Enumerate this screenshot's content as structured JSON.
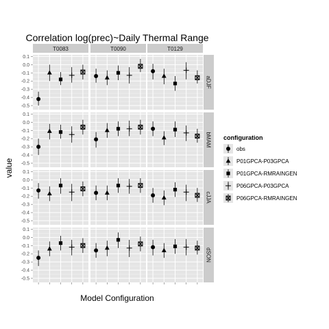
{
  "chart_data": {
    "type": "scatter",
    "title": "Correlation log(prec)~Daily Thermal Range",
    "xlabel": "Model Configuration",
    "ylabel": "value",
    "ylim": [
      -0.55,
      0.12
    ],
    "yticks": [
      "0.1",
      "0.0",
      "-0.1",
      "-0.2",
      "-0.3",
      "-0.4",
      "-0.5"
    ],
    "grid": true,
    "columns": [
      "T0083",
      "T0090",
      "T0129"
    ],
    "rows": [
      "aDJF",
      "bMAM",
      "cJJA",
      "dSON"
    ],
    "legend": {
      "title": "configuration",
      "position": "right",
      "entries": [
        {
          "name": "obs",
          "shape": "circle"
        },
        {
          "name": "P01GPCA-P03GPCA",
          "shape": "triangle"
        },
        {
          "name": "P01GPCA-RMRAINGEN",
          "shape": "square"
        },
        {
          "name": "P06GPCA-P03GPCA",
          "shape": "plus"
        },
        {
          "name": "P06GPCA-RMRAINGEN",
          "shape": "boxcross"
        }
      ]
    },
    "panels": [
      {
        "row": "aDJF",
        "col": "T0083",
        "points": [
          {
            "config": "obs",
            "y": -0.42,
            "lo": -0.5,
            "hi": -0.33
          },
          {
            "config": "P01GPCA-P03GPCA",
            "y": -0.1,
            "lo": -0.2,
            "hi": 0.0
          },
          {
            "config": "P01GPCA-RMRAINGEN",
            "y": -0.18,
            "lo": -0.25,
            "hi": -0.09
          },
          {
            "config": "P06GPCA-P03GPCA",
            "y": -0.13,
            "lo": -0.22,
            "hi": -0.03
          },
          {
            "config": "P06GPCA-RMRAINGEN",
            "y": -0.09,
            "lo": -0.18,
            "hi": 0.0
          }
        ]
      },
      {
        "row": "aDJF",
        "col": "T0090",
        "points": [
          {
            "config": "obs",
            "y": -0.14,
            "lo": -0.22,
            "hi": -0.05
          },
          {
            "config": "P01GPCA-P03GPCA",
            "y": -0.16,
            "lo": -0.25,
            "hi": -0.07
          },
          {
            "config": "P01GPCA-RMRAINGEN",
            "y": -0.1,
            "lo": -0.19,
            "hi": -0.01
          },
          {
            "config": "P06GPCA-P03GPCA",
            "y": -0.13,
            "lo": -0.23,
            "hi": -0.03
          },
          {
            "config": "P06GPCA-RMRAINGEN",
            "y": -0.02,
            "lo": -0.09,
            "hi": 0.07
          }
        ]
      },
      {
        "row": "aDJF",
        "col": "T0129",
        "points": [
          {
            "config": "obs",
            "y": -0.08,
            "lo": -0.18,
            "hi": 0.01
          },
          {
            "config": "P01GPCA-P03GPCA",
            "y": -0.14,
            "lo": -0.24,
            "hi": -0.05
          },
          {
            "config": "P01GPCA-RMRAINGEN",
            "y": -0.23,
            "lo": -0.32,
            "hi": -0.14
          },
          {
            "config": "P06GPCA-P03GPCA",
            "y": -0.07,
            "lo": -0.18,
            "hi": 0.03
          },
          {
            "config": "P06GPCA-RMRAINGEN",
            "y": -0.16,
            "lo": -0.23,
            "hi": -0.07
          }
        ]
      },
      {
        "row": "bMAM",
        "col": "T0083",
        "points": [
          {
            "config": "obs",
            "y": -0.3,
            "lo": -0.4,
            "hi": -0.2
          },
          {
            "config": "P01GPCA-P03GPCA",
            "y": -0.11,
            "lo": -0.21,
            "hi": -0.02
          },
          {
            "config": "P01GPCA-RMRAINGEN",
            "y": -0.12,
            "lo": -0.2,
            "hi": -0.03
          },
          {
            "config": "P06GPCA-P03GPCA",
            "y": -0.15,
            "lo": -0.25,
            "hi": -0.05
          },
          {
            "config": "P06GPCA-RMRAINGEN",
            "y": -0.06,
            "lo": -0.15,
            "hi": 0.03
          }
        ]
      },
      {
        "row": "bMAM",
        "col": "T0090",
        "points": [
          {
            "config": "obs",
            "y": -0.21,
            "lo": -0.31,
            "hi": -0.12
          },
          {
            "config": "P01GPCA-P03GPCA",
            "y": -0.1,
            "lo": -0.19,
            "hi": -0.01
          },
          {
            "config": "P01GPCA-RMRAINGEN",
            "y": -0.08,
            "lo": -0.17,
            "hi": 0.01
          },
          {
            "config": "P06GPCA-P03GPCA",
            "y": -0.08,
            "lo": -0.17,
            "hi": 0.02
          },
          {
            "config": "P06GPCA-RMRAINGEN",
            "y": -0.06,
            "lo": -0.15,
            "hi": 0.03
          }
        ]
      },
      {
        "row": "bMAM",
        "col": "T0129",
        "points": [
          {
            "config": "obs",
            "y": -0.08,
            "lo": -0.17,
            "hi": 0.01
          },
          {
            "config": "P01GPCA-P03GPCA",
            "y": -0.19,
            "lo": -0.28,
            "hi": -0.11
          },
          {
            "config": "P01GPCA-RMRAINGEN",
            "y": -0.09,
            "lo": -0.18,
            "hi": 0.01
          },
          {
            "config": "P06GPCA-P03GPCA",
            "y": -0.13,
            "lo": -0.23,
            "hi": -0.04
          },
          {
            "config": "P06GPCA-RMRAINGEN",
            "y": -0.17,
            "lo": -0.25,
            "hi": -0.08
          }
        ]
      },
      {
        "row": "cJJA",
        "col": "T0083",
        "points": [
          {
            "config": "obs",
            "y": -0.13,
            "lo": -0.23,
            "hi": -0.04
          },
          {
            "config": "P01GPCA-P03GPCA",
            "y": -0.17,
            "lo": -0.26,
            "hi": -0.08
          },
          {
            "config": "P01GPCA-RMRAINGEN",
            "y": -0.07,
            "lo": -0.17,
            "hi": 0.02
          },
          {
            "config": "P06GPCA-P03GPCA",
            "y": -0.15,
            "lo": -0.26,
            "hi": -0.05
          },
          {
            "config": "P06GPCA-RMRAINGEN",
            "y": -0.11,
            "lo": -0.2,
            "hi": -0.02
          }
        ]
      },
      {
        "row": "cJJA",
        "col": "T0090",
        "points": [
          {
            "config": "obs",
            "y": -0.16,
            "lo": -0.25,
            "hi": -0.07
          },
          {
            "config": "P01GPCA-P03GPCA",
            "y": -0.16,
            "lo": -0.25,
            "hi": -0.07
          },
          {
            "config": "P01GPCA-RMRAINGEN",
            "y": -0.07,
            "lo": -0.16,
            "hi": 0.02
          },
          {
            "config": "P06GPCA-P03GPCA",
            "y": -0.08,
            "lo": -0.17,
            "hi": 0.01
          },
          {
            "config": "P06GPCA-RMRAINGEN",
            "y": -0.07,
            "lo": -0.16,
            "hi": 0.02
          }
        ]
      },
      {
        "row": "cJJA",
        "col": "T0129",
        "points": [
          {
            "config": "obs",
            "y": -0.19,
            "lo": -0.28,
            "hi": -0.1
          },
          {
            "config": "P01GPCA-P03GPCA",
            "y": -0.22,
            "lo": -0.31,
            "hi": -0.13
          },
          {
            "config": "P01GPCA-RMRAINGEN",
            "y": -0.12,
            "lo": -0.21,
            "hi": -0.03
          },
          {
            "config": "P06GPCA-P03GPCA",
            "y": -0.15,
            "lo": -0.26,
            "hi": -0.06
          },
          {
            "config": "P06GPCA-RMRAINGEN",
            "y": -0.19,
            "lo": -0.27,
            "hi": -0.1
          }
        ]
      },
      {
        "row": "dSON",
        "col": "T0083",
        "points": [
          {
            "config": "obs",
            "y": -0.25,
            "lo": -0.35,
            "hi": -0.16
          },
          {
            "config": "P01GPCA-P03GPCA",
            "y": -0.14,
            "lo": -0.23,
            "hi": -0.05
          },
          {
            "config": "P01GPCA-RMRAINGEN",
            "y": -0.07,
            "lo": -0.16,
            "hi": 0.02
          },
          {
            "config": "P06GPCA-P03GPCA",
            "y": -0.12,
            "lo": -0.22,
            "hi": -0.03
          },
          {
            "config": "P06GPCA-RMRAINGEN",
            "y": -0.1,
            "lo": -0.19,
            "hi": -0.01
          }
        ]
      },
      {
        "row": "dSON",
        "col": "T0090",
        "points": [
          {
            "config": "obs",
            "y": -0.16,
            "lo": -0.25,
            "hi": -0.07
          },
          {
            "config": "P01GPCA-P03GPCA",
            "y": -0.13,
            "lo": -0.23,
            "hi": -0.04
          },
          {
            "config": "P01GPCA-RMRAINGEN",
            "y": -0.03,
            "lo": -0.13,
            "hi": 0.06
          },
          {
            "config": "P06GPCA-P03GPCA",
            "y": -0.13,
            "lo": -0.24,
            "hi": -0.03
          },
          {
            "config": "P06GPCA-RMRAINGEN",
            "y": -0.08,
            "lo": -0.17,
            "hi": 0.01
          }
        ]
      },
      {
        "row": "dSON",
        "col": "T0129",
        "points": [
          {
            "config": "obs",
            "y": -0.12,
            "lo": -0.22,
            "hi": -0.03
          },
          {
            "config": "P01GPCA-P03GPCA",
            "y": -0.16,
            "lo": -0.25,
            "hi": -0.07
          },
          {
            "config": "P01GPCA-RMRAINGEN",
            "y": -0.11,
            "lo": -0.2,
            "hi": -0.02
          },
          {
            "config": "P06GPCA-P03GPCA",
            "y": -0.12,
            "lo": -0.22,
            "hi": -0.02
          },
          {
            "config": "P06GPCA-RMRAINGEN",
            "y": -0.13,
            "lo": -0.21,
            "hi": -0.04
          }
        ]
      }
    ]
  }
}
